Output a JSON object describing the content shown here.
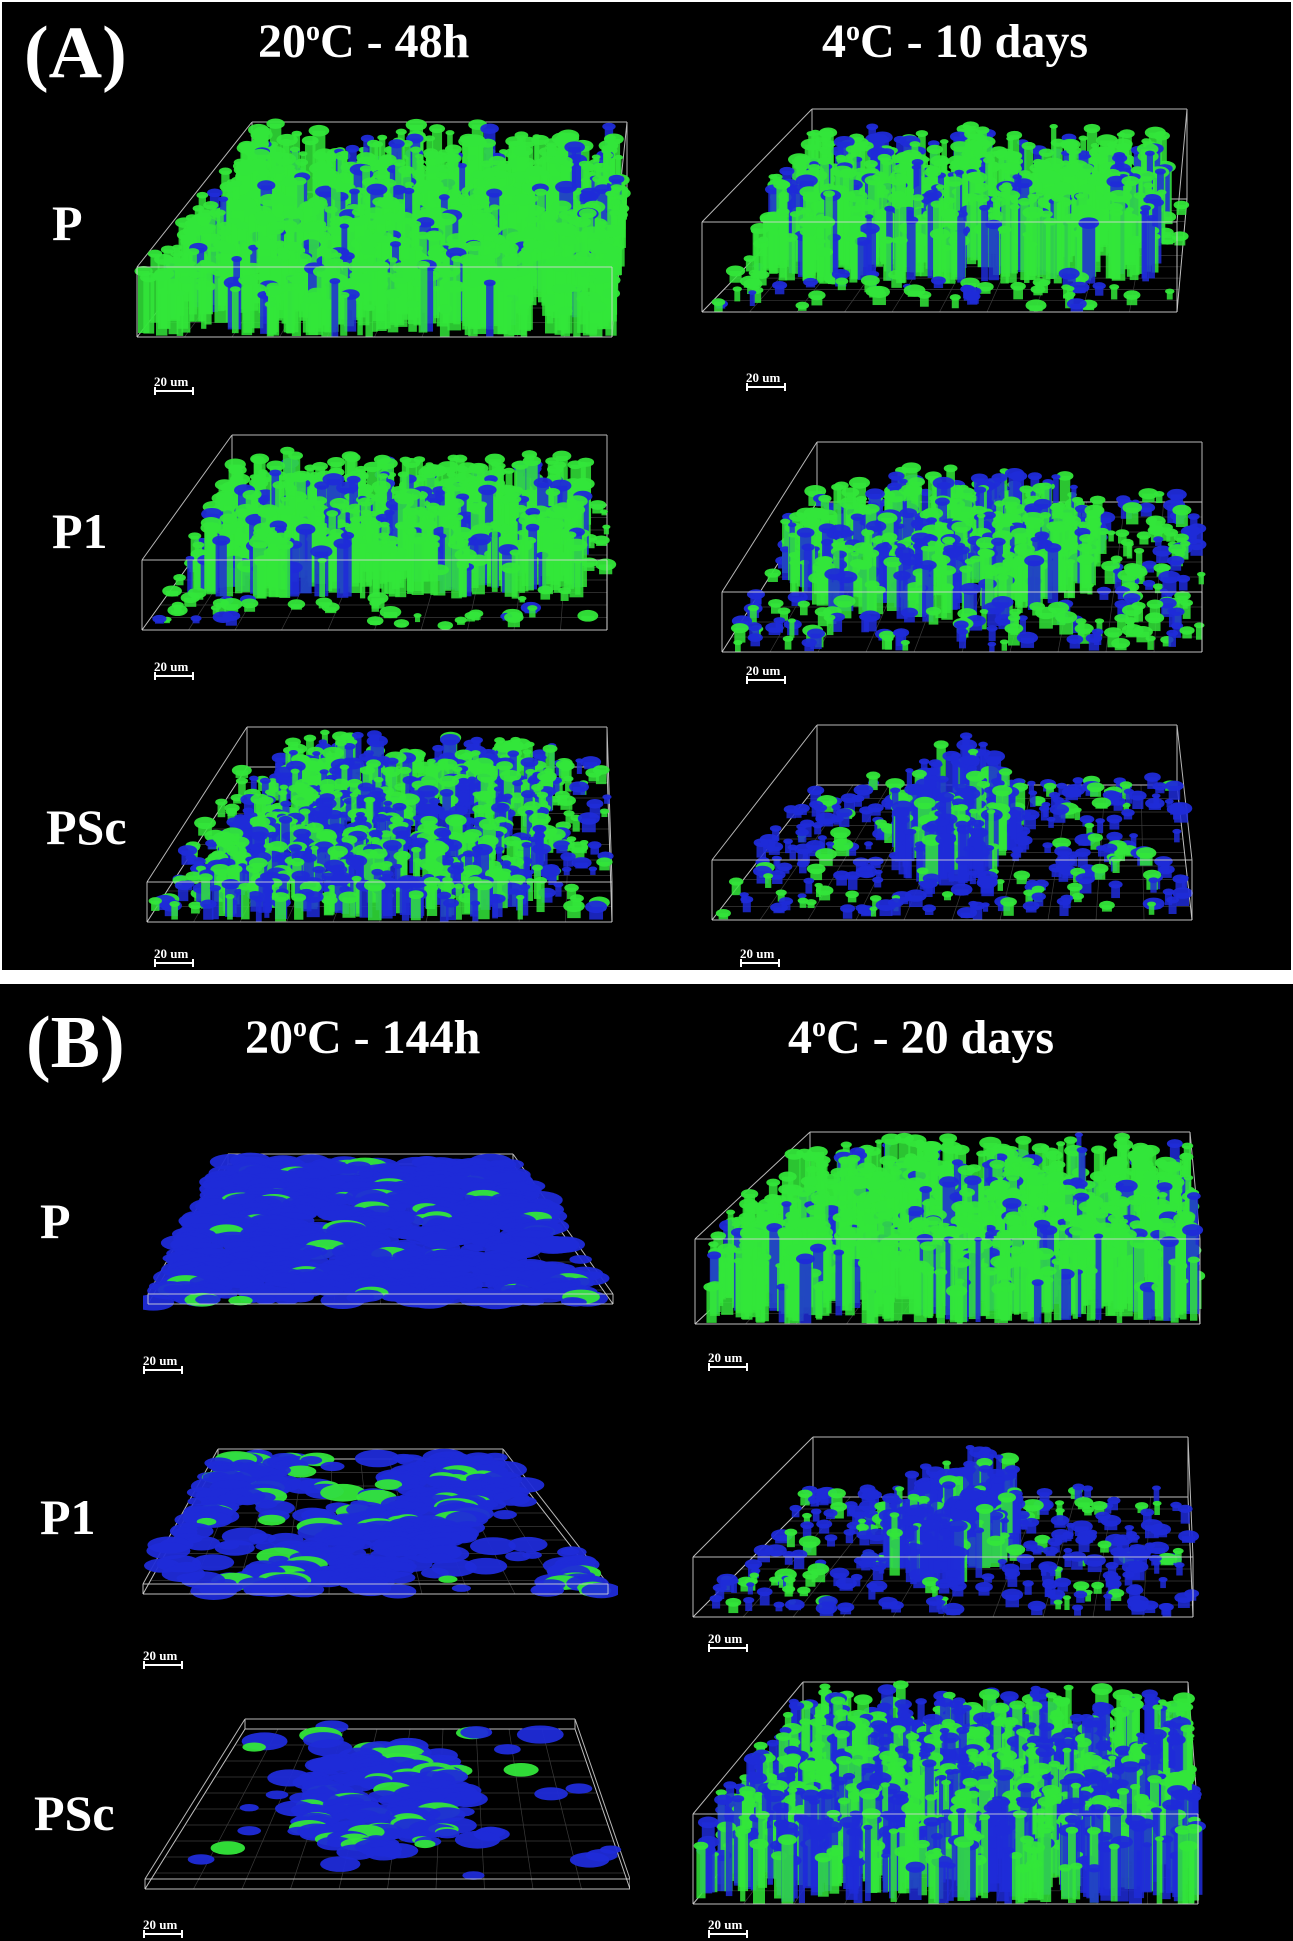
{
  "panel_a": {
    "label": "(A)",
    "col_left": {
      "temp": "20",
      "deg": "o",
      "rest": "C - 48h"
    },
    "col_right": {
      "temp": "4",
      "deg": "o",
      "rest": "C - 10 days"
    },
    "rows": [
      "P",
      "P1",
      "PSc"
    ]
  },
  "panel_b": {
    "label": "(B)",
    "col_left": {
      "temp": "20",
      "deg": "o",
      "rest": "C - 144h"
    },
    "col_right": {
      "temp": "4",
      "deg": "o",
      "rest": "C - 20 days"
    },
    "rows": [
      "P",
      "P1",
      "PSc"
    ]
  },
  "scalebar_label": "20 um",
  "colors": {
    "background": "#000000",
    "green_stain": "#33e63a",
    "blue_stain": "#1f2bd8",
    "box_lines": "#d8d8d8"
  }
}
